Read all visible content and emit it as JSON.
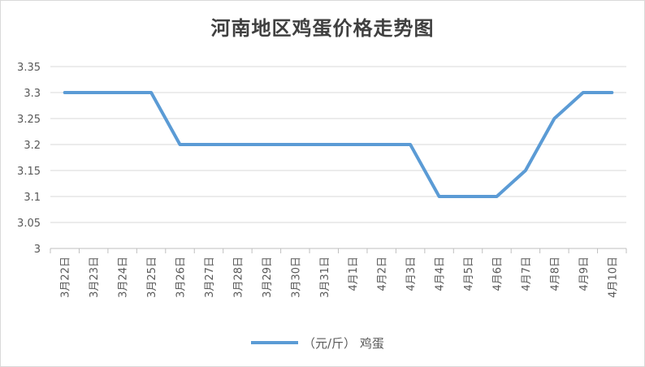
{
  "chart_data": {
    "type": "line",
    "title": "河南地区鸡蛋价格走势图",
    "categories": [
      "3月22日",
      "3月23日",
      "3月24日",
      "3月25日",
      "3月26日",
      "3月27日",
      "3月28日",
      "3月29日",
      "3月30日",
      "3月31日",
      "4月1日",
      "4月2日",
      "4月3日",
      "4月4日",
      "4月5日",
      "4月6日",
      "4月7日",
      "4月8日",
      "4月9日",
      "4月10日"
    ],
    "series": [
      {
        "name": "（元/斤） 鸡蛋",
        "values": [
          3.3,
          3.3,
          3.3,
          3.3,
          3.2,
          3.2,
          3.2,
          3.2,
          3.2,
          3.2,
          3.2,
          3.2,
          3.2,
          3.1,
          3.1,
          3.1,
          3.15,
          3.25,
          3.3,
          3.3
        ],
        "color": "#5b9bd5"
      }
    ],
    "yticks": [
      "3",
      "3.05",
      "3.1",
      "3.15",
      "3.2",
      "3.25",
      "3.3",
      "3.35"
    ],
    "ylim": [
      3,
      3.35
    ],
    "grid": true,
    "legend_position": "bottom"
  }
}
